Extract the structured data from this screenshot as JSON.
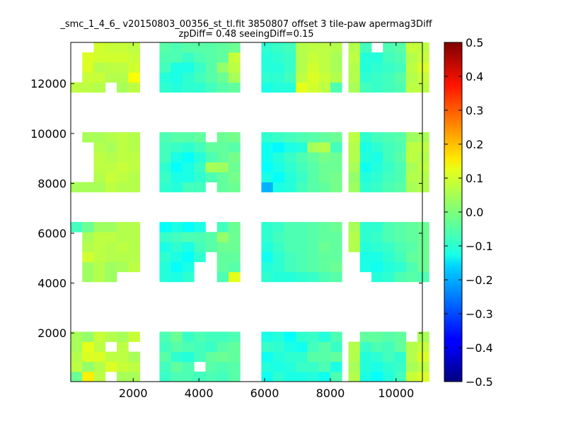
{
  "chart_data": {
    "type": "heatmap",
    "title": "_smc_1_4_6_ v20150803_00356_st_tl.fit 3850807 offset 3 tile-paw apermag3Diff",
    "subtitle": "zpDiff= 0.48 seeingDiff=0.15",
    "xlabel": "",
    "ylabel": "",
    "xlim": [
      100,
      10800
    ],
    "ylim": [
      50,
      13650
    ],
    "x_ticks": [
      2000,
      4000,
      6000,
      8000,
      10000
    ],
    "y_ticks": [
      2000,
      4000,
      6000,
      8000,
      10000,
      12000
    ],
    "grid": false,
    "cell_size": [
      350,
      400
    ],
    "colorbar": {
      "min": -0.5,
      "max": 0.5,
      "colormap": "jet",
      "ticks": [
        "0.5",
        "0.4",
        "0.3",
        "0.2",
        "0.1",
        "0.0",
        "−0.1",
        "−0.2",
        "−0.3",
        "−0.4",
        "−0.5"
      ]
    },
    "bands_y": [
      {
        "y0": 50,
        "rows": 5,
        "holes": [
          [
            3,
            0
          ],
          [
            3,
            3
          ],
          [
            9,
            1
          ],
          [
            5,
            3
          ],
          [
            28,
            4
          ],
          [
            25,
            4
          ],
          [
            20,
            4
          ]
        ]
      },
      {
        "y0": 4050,
        "rows": 6,
        "holes": [
          [
            0,
            1
          ],
          [
            0,
            2
          ],
          [
            0,
            3
          ],
          [
            0,
            4
          ],
          [
            0,
            0
          ],
          [
            5,
            0
          ],
          [
            4,
            0
          ],
          [
            9,
            0
          ],
          [
            9,
            1
          ],
          [
            10,
            0
          ],
          [
            10,
            1
          ],
          [
            10,
            2
          ],
          [
            10,
            5
          ],
          [
            20,
            0
          ],
          [
            20,
            1
          ],
          [
            20,
            2
          ],
          [
            21,
            0
          ]
        ]
      },
      {
        "y0": 7650,
        "rows": 6,
        "holes": [
          [
            1,
            1
          ],
          [
            1,
            2
          ],
          [
            1,
            3
          ],
          [
            1,
            4
          ],
          [
            0,
            1
          ],
          [
            0,
            2
          ],
          [
            0,
            3
          ],
          [
            0,
            4
          ],
          [
            0,
            5
          ],
          [
            10,
            0
          ],
          [
            10,
            5
          ],
          [
            28,
            1
          ],
          [
            28,
            2
          ],
          [
            28,
            3
          ],
          [
            28,
            4
          ],
          [
            29,
            2
          ]
        ]
      },
      {
        "y0": 11650,
        "rows": 5,
        "holes": [
          [
            0,
            1
          ],
          [
            0,
            2
          ],
          [
            0,
            3
          ],
          [
            0,
            4
          ],
          [
            1,
            4
          ],
          [
            3,
            0
          ],
          [
            28,
            1
          ],
          [
            28,
            2
          ],
          [
            22,
            4
          ]
        ]
      }
    ],
    "column_groups": [
      {
        "x0": 100,
        "cols": 6
      },
      {
        "x0": 2800,
        "cols": 7
      },
      {
        "x0": 5900,
        "cols": 7
      },
      {
        "x0": 8550,
        "cols": 7
      }
    ],
    "values": {
      "b0": [
        [
          -0.02,
          0.14,
          0.06,
          0.06,
          0.04,
          0.04,
          -0.07,
          -0.05,
          -0.05,
          -0.06,
          -0.05,
          -0.06,
          -0.04,
          -0.11,
          -0.08,
          -0.1,
          -0.1,
          -0.09,
          -0.11,
          -0.05,
          0.05,
          -0.1,
          -0.12,
          -0.09,
          -0.06,
          0.07,
          0.09,
          0.04,
          0.06,
          0.07
        ],
        [
          0.06,
          0.02,
          0.05,
          0.09,
          0.07,
          0.06,
          -0.06,
          -0.03,
          -0.05,
          -0.04,
          -0.04,
          -0.05,
          -0.04,
          -0.09,
          -0.1,
          -0.09,
          -0.07,
          -0.07,
          -0.05,
          -0.1,
          0.04,
          -0.09,
          -0.1,
          -0.08,
          -0.07,
          0.04,
          0.06,
          0.09,
          0.09,
          0.05
        ],
        [
          0.05,
          0.09,
          0.09,
          0.06,
          0.06,
          0.04,
          -0.04,
          -0.08,
          -0.09,
          -0.06,
          -0.03,
          -0.02,
          -0.03,
          -0.11,
          -0.09,
          -0.08,
          -0.08,
          -0.04,
          -0.04,
          -0.03,
          0.05,
          -0.09,
          -0.08,
          -0.06,
          -0.08,
          0.05,
          0.09,
          0.08,
          0.07,
          0.05
        ],
        [
          0.04,
          0.1,
          0.06,
          0.08,
          0.06,
          0.06,
          -0.06,
          -0.04,
          -0.05,
          -0.06,
          -0.07,
          -0.04,
          -0.03,
          -0.07,
          -0.08,
          -0.1,
          -0.11,
          -0.06,
          -0.04,
          -0.07,
          0.05,
          -0.07,
          -0.05,
          -0.06,
          -0.03,
          0.05,
          0.07,
          0.1,
          0.09,
          0.08
        ],
        [
          0.04,
          0.02,
          0.07,
          0.05,
          0.04,
          0.07,
          -0.05,
          -0.02,
          -0.07,
          -0.05,
          -0.06,
          -0.06,
          -0.05,
          -0.1,
          -0.09,
          -0.12,
          -0.08,
          -0.07,
          -0.09,
          -0.05,
          0.06,
          -0.03,
          -0.03,
          -0.04,
          -0.03,
          0.05,
          0.04,
          0.07,
          0.06,
          0.04
        ]
      ],
      "b1": [
        [
          -0.04,
          0.03,
          0.05,
          0.03,
          0.02,
          0.04,
          -0.09,
          -0.1,
          -0.08,
          -0.09,
          -0.07,
          -0.05,
          0.1,
          -0.08,
          -0.09,
          -0.09,
          -0.08,
          -0.07,
          -0.05,
          -0.04,
          0.05,
          -0.08,
          -0.09,
          -0.08,
          -0.05,
          -0.04,
          -0.05,
          0.04,
          0.03,
          0.04
        ],
        [
          0.03,
          0.03,
          0.05,
          0.03,
          0.04,
          0.06,
          -0.09,
          -0.12,
          -0.1,
          -0.08,
          -0.06,
          -0.03,
          -0.04,
          -0.09,
          -0.08,
          -0.06,
          -0.05,
          -0.04,
          -0.03,
          -0.02,
          0.04,
          -0.1,
          -0.11,
          -0.09,
          -0.08,
          -0.05,
          -0.02,
          0.04,
          0.03,
          0.05
        ],
        [
          0.06,
          0.08,
          0.06,
          0.05,
          0.05,
          0.05,
          -0.08,
          -0.1,
          -0.12,
          -0.08,
          -0.05,
          -0.03,
          -0.03,
          -0.11,
          -0.08,
          -0.06,
          -0.05,
          -0.04,
          -0.03,
          -0.03,
          0.06,
          -0.1,
          -0.1,
          -0.08,
          -0.06,
          -0.03,
          -0.02,
          0.05,
          0.06,
          0.04
        ],
        [
          0.05,
          0.05,
          0.06,
          0.05,
          0.06,
          0.05,
          -0.1,
          -0.08,
          -0.1,
          -0.06,
          -0.04,
          -0.02,
          -0.02,
          -0.09,
          -0.07,
          -0.05,
          -0.05,
          -0.04,
          -0.02,
          -0.03,
          0.05,
          -0.09,
          -0.08,
          -0.07,
          -0.05,
          -0.04,
          -0.02,
          0.03,
          0.04,
          0.06
        ],
        [
          0.03,
          0.04,
          0.06,
          0.06,
          0.05,
          0.05,
          -0.07,
          -0.06,
          -0.05,
          -0.05,
          -0.04,
          0.02,
          -0.02,
          -0.08,
          -0.06,
          -0.05,
          -0.05,
          -0.04,
          -0.03,
          -0.03,
          0.05,
          -0.08,
          -0.07,
          -0.05,
          -0.04,
          -0.03,
          -0.02,
          0.03,
          0.04,
          0.05
        ],
        [
          -0.06,
          -0.02,
          0.03,
          0.03,
          0.05,
          0.05,
          -0.12,
          -0.1,
          -0.12,
          -0.1,
          -0.08,
          -0.06,
          -0.02,
          -0.08,
          -0.07,
          -0.05,
          -0.05,
          -0.04,
          -0.03,
          -0.02,
          0.04,
          -0.08,
          -0.08,
          -0.05,
          -0.04,
          -0.03,
          -0.02,
          0.03,
          0.04,
          0.05
        ]
      ],
      "b2": [
        [
          0.04,
          0.04,
          0.04,
          0.06,
          0.05,
          0.05,
          -0.08,
          -0.09,
          -0.06,
          -0.06,
          -0.06,
          -0.03,
          -0.02,
          -0.2,
          -0.1,
          -0.09,
          -0.06,
          -0.04,
          -0.03,
          -0.01,
          0.03,
          -0.08,
          -0.07,
          -0.05,
          -0.04,
          0.04,
          0.05,
          0.07,
          0.06,
          0.05
        ],
        [
          0.05,
          -0.04,
          0.05,
          0.07,
          0.06,
          0.05,
          -0.07,
          -0.1,
          -0.1,
          -0.08,
          -0.05,
          -0.03,
          -0.01,
          -0.1,
          -0.12,
          -0.09,
          -0.07,
          -0.04,
          -0.02,
          -0.01,
          0.02,
          -0.09,
          -0.08,
          -0.06,
          -0.05,
          0.05,
          0.05,
          0.06,
          0.05,
          0.06
        ],
        [
          0.03,
          0.06,
          0.06,
          0.06,
          0.07,
          0.06,
          -0.08,
          -0.12,
          -0.1,
          -0.07,
          0.04,
          0.03,
          -0.02,
          -0.12,
          -0.1,
          -0.08,
          -0.06,
          -0.04,
          -0.02,
          -0.02,
          0.04,
          -0.11,
          -0.09,
          -0.07,
          -0.05,
          0.04,
          0.06,
          0.07,
          0.05,
          0.05
        ],
        [
          0.04,
          0.05,
          0.06,
          0.05,
          0.06,
          0.06,
          -0.06,
          -0.1,
          -0.12,
          -0.09,
          -0.05,
          -0.03,
          -0.01,
          -0.11,
          -0.09,
          -0.07,
          -0.05,
          -0.03,
          -0.01,
          -0.02,
          0.05,
          -0.09,
          -0.1,
          -0.06,
          -0.04,
          0.06,
          0.05,
          0.06,
          0.07,
          0.05
        ],
        [
          0.05,
          0.06,
          0.05,
          0.04,
          0.06,
          0.05,
          -0.06,
          -0.07,
          -0.08,
          -0.06,
          -0.03,
          -0.03,
          -0.04,
          -0.11,
          -0.13,
          -0.1,
          -0.09,
          0.04,
          0.05,
          -0.06,
          0.05,
          -0.1,
          -0.08,
          -0.06,
          -0.05,
          0.06,
          0.06,
          0.06,
          0.07,
          0.05
        ],
        [
          0.04,
          0.04,
          0.04,
          0.05,
          0.06,
          0.05,
          -0.05,
          -0.04,
          -0.04,
          -0.03,
          -0.03,
          -0.02,
          -0.01,
          -0.08,
          -0.07,
          -0.06,
          -0.05,
          -0.04,
          -0.03,
          -0.02,
          0.06,
          -0.08,
          -0.06,
          -0.05,
          -0.04,
          0.03,
          0.04,
          0.05,
          0.06,
          0.05
        ]
      ],
      "b3": [
        [
          0.06,
          0.06,
          0.05,
          0.03,
          0.04,
          0.06,
          -0.08,
          -0.09,
          -0.08,
          -0.08,
          -0.06,
          -0.04,
          -0.03,
          -0.1,
          -0.09,
          -0.09,
          0.1,
          0.08,
          0.06,
          -0.05,
          0.04,
          -0.06,
          -0.07,
          -0.06,
          -0.05,
          0.06,
          0.06,
          0.07,
          0.04,
          0.05
        ],
        [
          0.05,
          0.07,
          0.07,
          0.05,
          0.05,
          0.12,
          -0.09,
          -0.1,
          -0.08,
          -0.06,
          -0.04,
          -0.02,
          0.04,
          -0.08,
          -0.08,
          -0.06,
          0.06,
          0.09,
          0.07,
          0.05,
          0.05,
          -0.08,
          -0.07,
          -0.06,
          -0.04,
          0.05,
          0.07,
          0.08,
          0.08,
          0.07
        ],
        [
          0.04,
          0.09,
          0.05,
          0.06,
          0.06,
          0.08,
          -0.06,
          -0.1,
          -0.1,
          -0.07,
          -0.04,
          0.02,
          0.06,
          -0.09,
          -0.09,
          -0.07,
          0.05,
          0.08,
          0.06,
          0.04,
          0.05,
          -0.09,
          -0.08,
          -0.07,
          -0.06,
          0.06,
          0.09,
          0.12,
          0.08,
          0.07
        ],
        [
          0.05,
          0.09,
          0.08,
          0.08,
          0.08,
          0.07,
          -0.05,
          -0.05,
          -0.07,
          -0.05,
          -0.04,
          -0.03,
          0.07,
          -0.09,
          -0.08,
          -0.07,
          0.05,
          0.07,
          0.06,
          0.04,
          0.06,
          -0.09,
          -0.09,
          -0.06,
          -0.05,
          0.05,
          0.07,
          0.06,
          0.05,
          0.06
        ],
        [
          0.03,
          0.15,
          0.08,
          0.07,
          0.07,
          0.06,
          -0.04,
          -0.05,
          -0.04,
          -0.04,
          -0.04,
          -0.03,
          -0.02,
          -0.08,
          -0.07,
          -0.06,
          0.05,
          0.06,
          0.06,
          0.05,
          0.05,
          -0.06,
          -0.07,
          -0.05,
          -0.04,
          0.07,
          0.06,
          0.06,
          0.05,
          0.06
        ]
      ]
    }
  }
}
